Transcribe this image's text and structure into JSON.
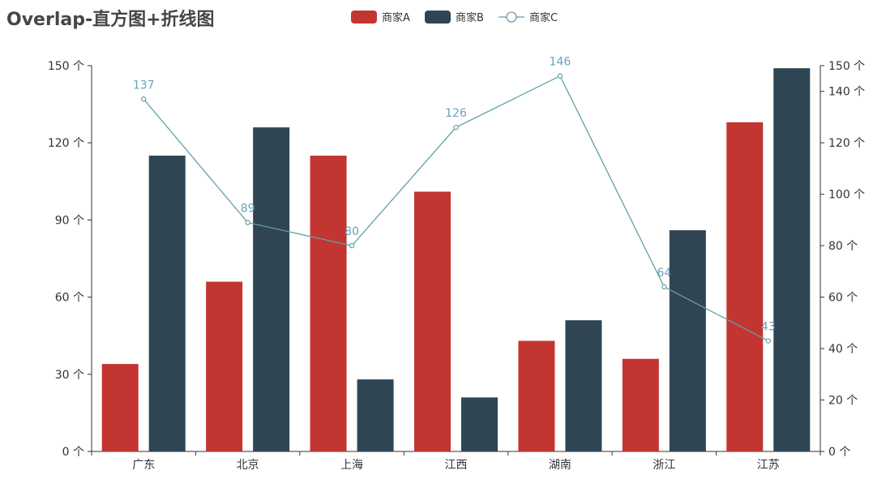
{
  "chart_data": {
    "type": "bar+line",
    "title": "Overlap-直方图+折线图",
    "categories": [
      "广东",
      "北京",
      "上海",
      "江西",
      "湖南",
      "浙江",
      "江苏"
    ],
    "unit": "个",
    "series": [
      {
        "name": "商家A",
        "kind": "bar",
        "axis": "left",
        "color": "#c23531",
        "values": [
          34,
          66,
          115,
          101,
          43,
          36,
          128
        ]
      },
      {
        "name": "商家B",
        "kind": "bar",
        "axis": "left",
        "color": "#2f4554",
        "values": [
          115,
          126,
          28,
          21,
          51,
          86,
          149
        ]
      },
      {
        "name": "商家C",
        "kind": "line",
        "axis": "right",
        "color": "#61a0a8",
        "values": [
          137,
          89,
          80,
          126,
          146,
          64,
          43
        ],
        "labels": [
          "137",
          "89",
          "80",
          "126",
          "146",
          "64",
          "43"
        ]
      }
    ],
    "y_left": {
      "min": 0,
      "max": 150,
      "ticks": [
        0,
        30,
        60,
        90,
        120,
        150
      ],
      "tick_labels": [
        "0 个",
        "30 个",
        "60 个",
        "90 个",
        "120 个",
        "150 个"
      ]
    },
    "y_right": {
      "min": 0,
      "max": 150,
      "ticks": [
        0,
        20,
        40,
        60,
        80,
        100,
        120,
        140,
        150
      ],
      "tick_labels": [
        "0 个",
        "20 个",
        "40 个",
        "60 个",
        "80 个",
        "100 个",
        "120 个",
        "140 个",
        "150 个"
      ]
    },
    "legend_position": "top-center"
  }
}
